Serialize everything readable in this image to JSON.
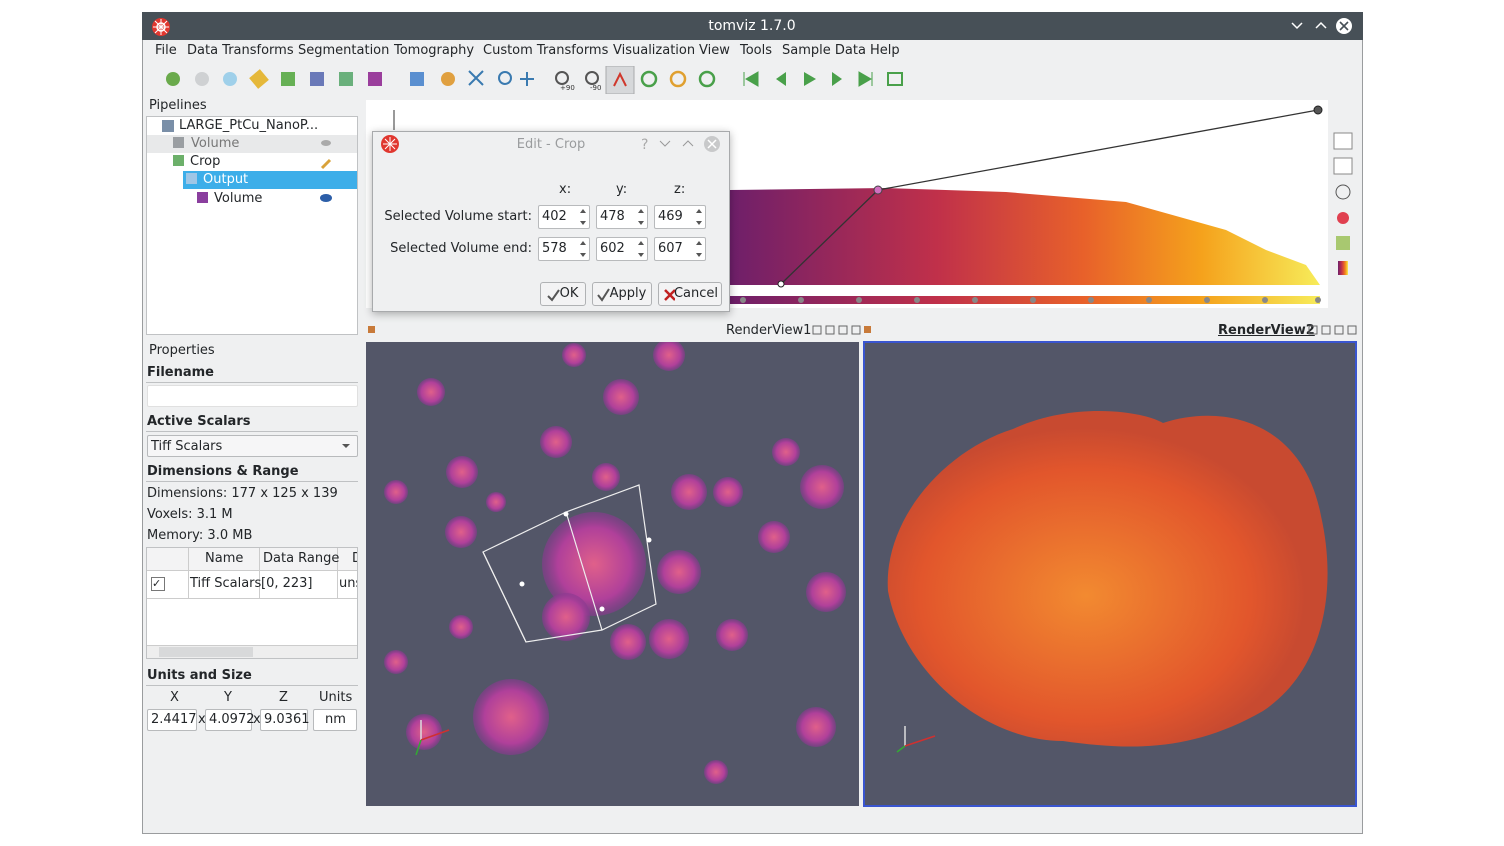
{
  "window": {
    "title": "tomviz 1.7.0"
  },
  "menu": [
    "File",
    "Data Transforms",
    "Segmentation",
    "Tomography",
    "Custom Transforms",
    "Visualization",
    "View",
    "Tools",
    "Sample Data",
    "Help"
  ],
  "toolbar": {
    "rotate_labels": [
      "+90",
      "-90"
    ]
  },
  "pipelines": {
    "title": "Pipelines",
    "items": [
      "LARGE_PtCu_NanoP...",
      "Volume",
      "Crop",
      "Output",
      "Volume"
    ]
  },
  "crop_dialog": {
    "title": "Edit - Crop",
    "axes": [
      "x:",
      "y:",
      "z:"
    ],
    "rows": [
      {
        "label": "Selected Volume start:",
        "values": [
          402,
          478,
          469
        ]
      },
      {
        "label": "Selected Volume end:",
        "values": [
          578,
          602,
          607
        ]
      }
    ],
    "buttons": [
      "OK",
      "Apply",
      "Cancel"
    ]
  },
  "properties": {
    "title": "Properties",
    "filename_heading": "Filename",
    "active_scalars_heading": "Active Scalars",
    "active_scalars": "Tiff Scalars",
    "dimensions_heading": "Dimensions & Range",
    "dimensions": "Dimensions: 177 x 125 x 139",
    "voxels": "Voxels: 3.1 M",
    "memory": "Memory: 3.0 MB",
    "table": {
      "headers": [
        "Name",
        "Data Range",
        "D"
      ],
      "rows": [
        [
          "Tiff Scalars",
          "[0, 223]",
          "uns"
        ]
      ]
    },
    "units_heading": "Units and Size",
    "units_headers": [
      "X",
      "Y",
      "Z",
      "Units"
    ],
    "units_values": [
      "2.4417",
      "4.0972",
      "9.0361",
      "nm"
    ],
    "units_separator": "x"
  },
  "render_views": [
    "RenderView1",
    "RenderView2"
  ]
}
